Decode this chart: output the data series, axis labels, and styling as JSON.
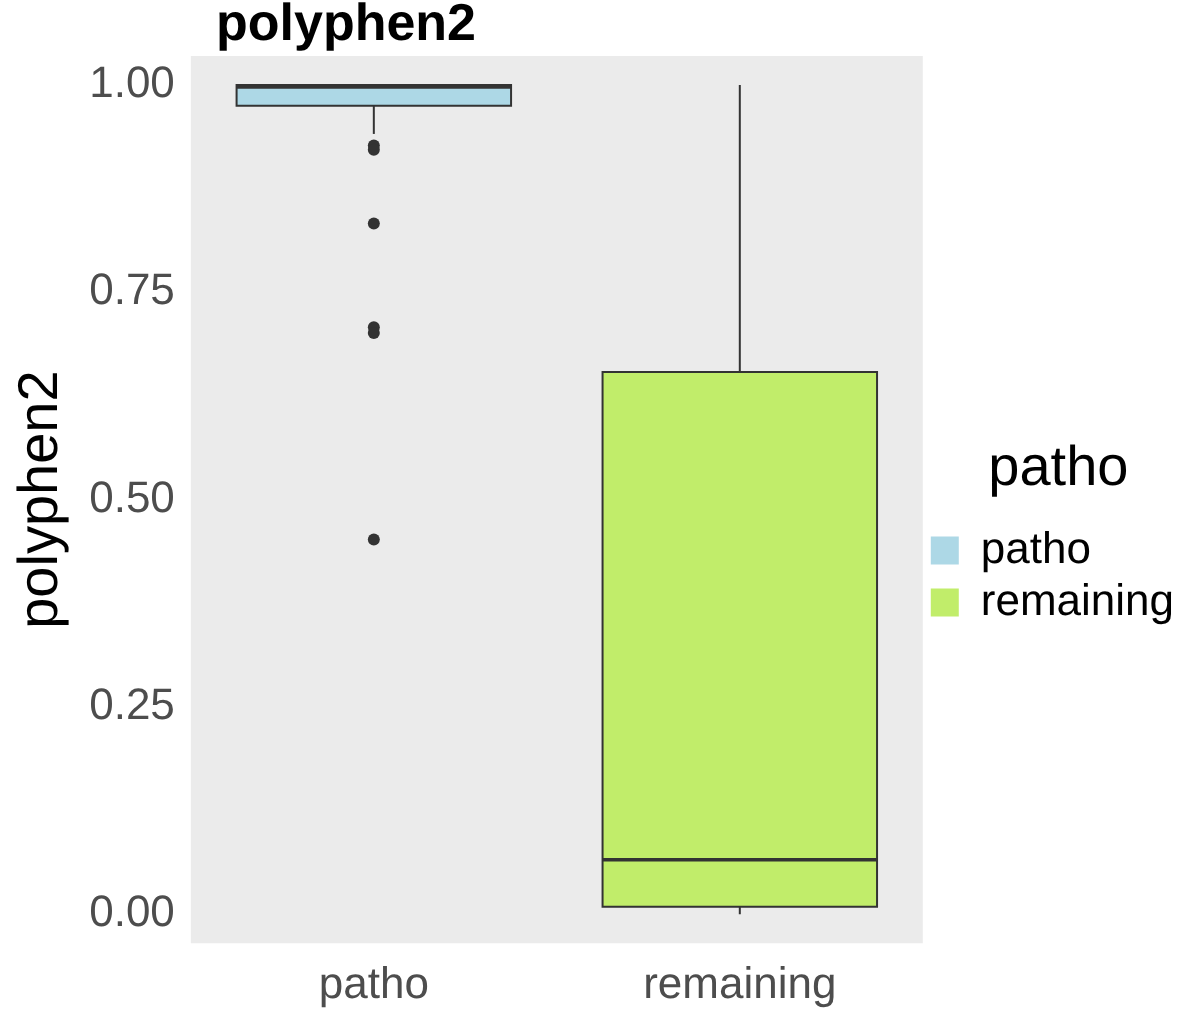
{
  "chart_data": {
    "type": "box",
    "title": "polyphen2",
    "ylabel": "polyphen2",
    "legend_title": "patho",
    "categories": [
      "patho",
      "remaining"
    ],
    "series": [
      {
        "name": "patho",
        "color": "#add8e6",
        "boxes": [
          {
            "low": 0.941,
            "q1": 0.975,
            "median": 1.0,
            "q3": 1.0,
            "high": 1.0,
            "outliers": [
              0.927,
              0.922,
              0.833,
              0.708,
              0.701,
              0.452
            ]
          },
          null
        ]
      },
      {
        "name": "remaining",
        "color": "#c1ed6a",
        "boxes": [
          null,
          {
            "low": 0.0,
            "q1": 0.009,
            "median": 0.068,
            "q3": 0.654,
            "high": 1.0
          }
        ]
      }
    ],
    "ylim": [
      -0.035,
      1.035
    ],
    "yticks": [
      {
        "value": 0,
        "label": "0.00"
      },
      {
        "value": 0.25,
        "label": "0.25"
      },
      {
        "value": 0.5,
        "label": "0.50"
      },
      {
        "value": 0.75,
        "label": "0.75"
      },
      {
        "value": 1,
        "label": "1.00"
      }
    ],
    "grid": false,
    "legend": "right"
  }
}
